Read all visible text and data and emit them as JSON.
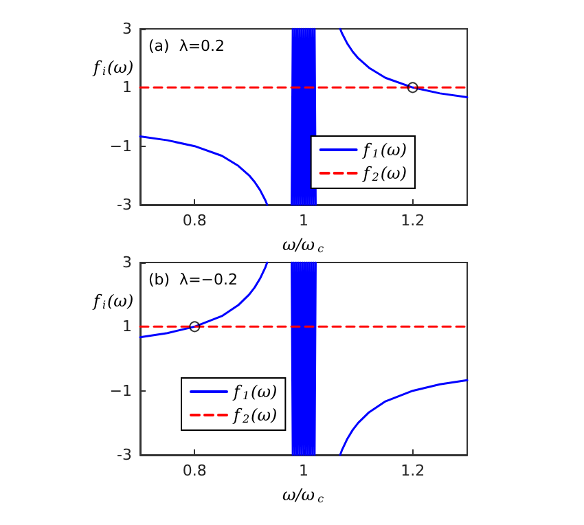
{
  "chart_data": [
    {
      "type": "line",
      "annotations": [
        "(a)  λ=0.2"
      ],
      "xlabel": "ω/ω$_{c}$",
      "ylabel": "f$_{i}$(ω)",
      "xlim": [
        0.7,
        1.3
      ],
      "xticks": [
        0.8,
        1,
        1.2
      ],
      "ylim": [
        -3,
        3
      ],
      "yticks": [
        -3,
        {
          "value": -1,
          "label": "−1"
        },
        1,
        3
      ],
      "grid": false,
      "legend": "right",
      "series": [
        {
          "name": "f$_{1}$(ω)",
          "color": "#0000ff",
          "line_style": "solid",
          "x": [
            0.7,
            0.75,
            0.8,
            0.85,
            0.88,
            0.9,
            0.91,
            0.92,
            0.93,
            0.933,
            0.95,
            0.978,
            0.98,
            0.982,
            0.984,
            0.986,
            0.988,
            0.99,
            0.992,
            0.994,
            0.996,
            0.998,
            1,
            1.002,
            1.004,
            1.006,
            1.008,
            1.01,
            1.012,
            1.014,
            1.016,
            1.018,
            1.02,
            1.022,
            1.05,
            1.067,
            1.07,
            1.08,
            1.09,
            1.1,
            1.12,
            1.15,
            1.2,
            1.25,
            1.3
          ],
          "values": [
            -0.67,
            -0.8,
            -1,
            -1.33,
            -1.67,
            -2,
            -2.22,
            -2.5,
            -2.86,
            -3,
            null,
            -3,
            3,
            -3,
            3,
            -3,
            3,
            -3,
            3,
            -3,
            3,
            -3,
            3,
            -3,
            3,
            -3,
            3,
            -3,
            3,
            -3,
            3,
            -3,
            3,
            -3,
            null,
            3,
            2.86,
            2.5,
            2.22,
            2,
            1.67,
            1.33,
            1,
            0.8,
            0.67
          ]
        },
        {
          "name": "f$_{2}$(ω)",
          "color": "#ff0000",
          "line_style": "dashed",
          "x": [
            0.7,
            1.3
          ],
          "values": [
            1,
            1
          ]
        },
        {
          "type": "scatter",
          "color": "#000000",
          "marker": "circle",
          "x": [
            1.2
          ],
          "values": [
            1
          ]
        }
      ]
    },
    {
      "type": "line",
      "annotations": [
        "(b)  λ=−0.2"
      ],
      "xlabel": "ω/ω$_{c}$",
      "ylabel": "f$_{i}$(ω)",
      "xlim": [
        0.7,
        1.3
      ],
      "xticks": [
        0.8,
        1,
        1.2
      ],
      "ylim": [
        -3,
        3
      ],
      "yticks": [
        -3,
        {
          "value": -1,
          "label": "−1"
        },
        1,
        3
      ],
      "grid": false,
      "legend": "left",
      "series": [
        {
          "name": "f$_{1}$(ω)",
          "color": "#0000ff",
          "line_style": "solid",
          "x": [
            0.7,
            0.75,
            0.8,
            0.85,
            0.88,
            0.9,
            0.91,
            0.92,
            0.93,
            0.933,
            0.95,
            0.978,
            0.98,
            0.982,
            0.984,
            0.986,
            0.988,
            0.99,
            0.992,
            0.994,
            0.996,
            0.998,
            1,
            1.002,
            1.004,
            1.006,
            1.008,
            1.01,
            1.012,
            1.014,
            1.016,
            1.018,
            1.02,
            1.022,
            1.05,
            1.067,
            1.07,
            1.08,
            1.09,
            1.1,
            1.12,
            1.15,
            1.2,
            1.25,
            1.3
          ],
          "values": [
            0.67,
            0.8,
            1,
            1.33,
            1.67,
            2,
            2.22,
            2.5,
            2.86,
            3,
            null,
            3,
            -3,
            3,
            -3,
            3,
            -3,
            3,
            -3,
            3,
            -3,
            3,
            -3,
            3,
            -3,
            3,
            -3,
            3,
            -3,
            3,
            -3,
            3,
            -3,
            3,
            null,
            -3,
            -2.86,
            -2.5,
            -2.22,
            -2,
            -1.67,
            -1.33,
            -1,
            -0.8,
            -0.67
          ]
        },
        {
          "name": "f$_{2}$(ω)",
          "color": "#ff0000",
          "line_style": "dashed",
          "x": [
            0.7,
            1.3
          ],
          "values": [
            1,
            1
          ]
        },
        {
          "type": "scatter",
          "color": "#000000",
          "marker": "circle",
          "x": [
            0.8
          ],
          "values": [
            1
          ]
        }
      ]
    }
  ]
}
